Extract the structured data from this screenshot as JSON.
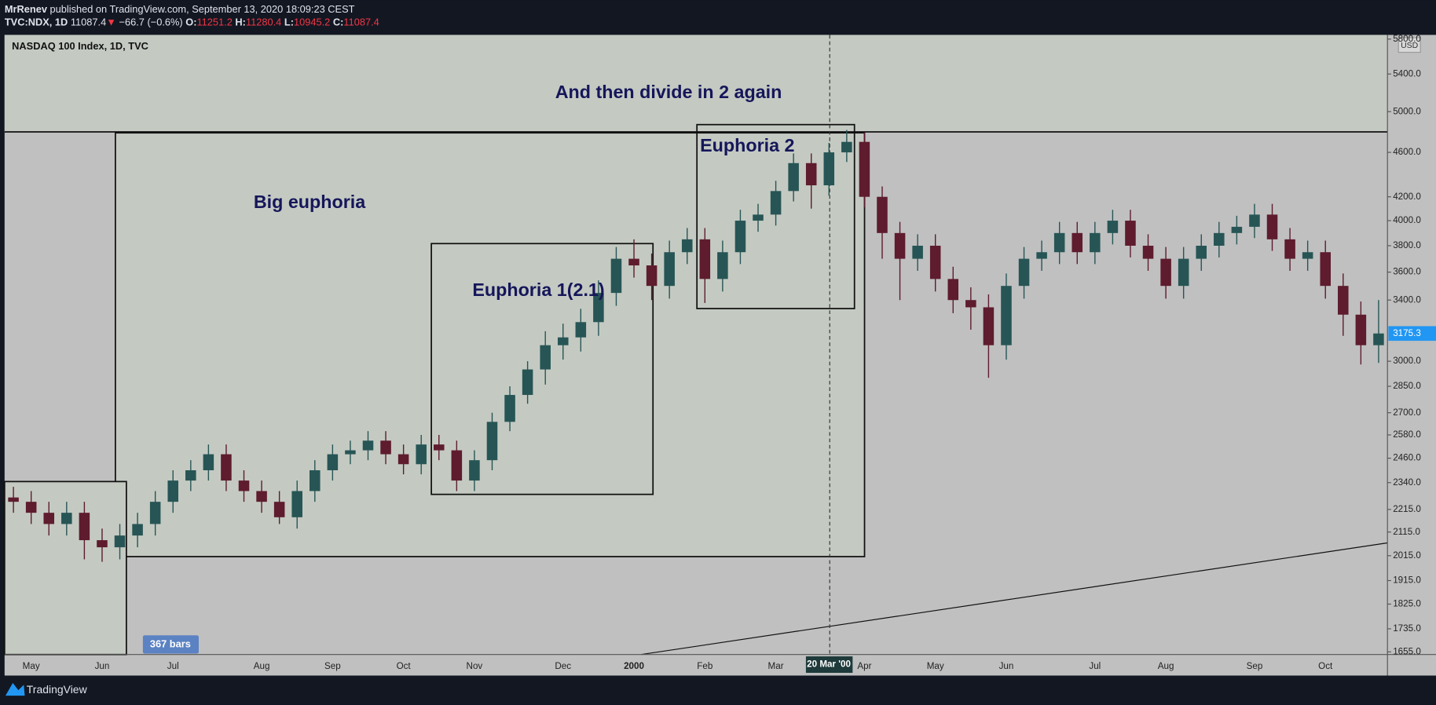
{
  "header": {
    "author": "MrRenev",
    "published": "published on TradingView.com, September 13, 2020 18:09:23 CEST",
    "symbol": "TVC:NDX, 1D",
    "last": "11087.4",
    "change_arrow": "▼",
    "change": "−66.7 (−0.6%)",
    "ohlc": [
      {
        "label": "O:",
        "value": "11251.2"
      },
      {
        "label": "H:",
        "value": "11280.4"
      },
      {
        "label": "L:",
        "value": "10945.2"
      },
      {
        "label": "C:",
        "value": "11087.4"
      }
    ]
  },
  "chart_data": {
    "type": "candlestick",
    "title": "NASDAQ 100 Index, 1D, TVC",
    "currency": "USD",
    "log_scale": true,
    "up_color": "#275555",
    "down_color": "#5e1c2e",
    "categories": [
      null,
      "May",
      null,
      null,
      null,
      "Jun",
      null,
      null,
      null,
      "Jul",
      null,
      null,
      null,
      null,
      "Aug",
      null,
      null,
      null,
      "Sep",
      null,
      null,
      null,
      "Oct",
      null,
      null,
      null,
      "Nov",
      null,
      null,
      null,
      null,
      "Dec",
      null,
      null,
      null,
      "2000",
      null,
      null,
      null,
      "Feb",
      null,
      null,
      null,
      "Mar",
      null,
      null,
      null,
      null,
      "Apr",
      null,
      null,
      null,
      "May",
      null,
      null,
      null,
      "Jun",
      null,
      null,
      null,
      null,
      "Jul",
      null,
      null,
      null,
      "Aug",
      null,
      null,
      null,
      null,
      "Sep",
      null,
      null,
      null,
      "Oct",
      null,
      null,
      null
    ],
    "open": [
      2270,
      2250,
      2200,
      2150,
      2200,
      2080,
      2050,
      2100,
      2150,
      2250,
      2350,
      2400,
      2480,
      2350,
      2300,
      2250,
      2180,
      2300,
      2400,
      2480,
      2500,
      2550,
      2480,
      2430,
      2530,
      2500,
      2350,
      2450,
      2650,
      2800,
      2950,
      3100,
      3150,
      3250,
      3450,
      3700,
      3650,
      3500,
      3750,
      3850,
      3550,
      3750,
      4000,
      4050,
      4250,
      4500,
      4300,
      4600,
      4700,
      4200,
      3900,
      3700,
      3800,
      3550,
      3400,
      3350,
      3100,
      3500,
      3700,
      3750,
      3900,
      3750,
      3900,
      4000,
      3800,
      3700,
      3500,
      3700,
      3800,
      3900,
      3950,
      4050,
      3850,
      3700,
      3750,
      3500,
      3300,
      3100
    ],
    "high": [
      2320,
      2300,
      2250,
      2250,
      2250,
      2130,
      2150,
      2200,
      2300,
      2400,
      2450,
      2530,
      2530,
      2400,
      2350,
      2300,
      2350,
      2450,
      2530,
      2550,
      2600,
      2600,
      2530,
      2580,
      2580,
      2550,
      2500,
      2700,
      2850,
      3000,
      3190,
      3240,
      3340,
      3540,
      3790,
      3850,
      3740,
      3840,
      3940,
      3940,
      3840,
      4090,
      4140,
      4340,
      4590,
      4590,
      4690,
      4816,
      4790,
      4290,
      3990,
      3890,
      3890,
      3640,
      3490,
      3440,
      3590,
      3790,
      3840,
      3990,
      3990,
      3990,
      4090,
      4090,
      3890,
      3790,
      3790,
      3890,
      3990,
      4040,
      4140,
      4140,
      3940,
      3840,
      3840,
      3590,
      3390,
      3400
    ],
    "low": [
      2200,
      2150,
      2100,
      2100,
      2000,
      1990,
      2000,
      2050,
      2100,
      2200,
      2300,
      2350,
      2300,
      2250,
      2200,
      2150,
      2130,
      2250,
      2350,
      2430,
      2450,
      2430,
      2380,
      2380,
      2450,
      2300,
      2300,
      2400,
      2600,
      2750,
      2860,
      3010,
      3060,
      3160,
      3360,
      3560,
      3400,
      3410,
      3660,
      3380,
      3460,
      3660,
      3910,
      3960,
      4160,
      4100,
      4210,
      4510,
      4110,
      3700,
      3400,
      3610,
      3460,
      3310,
      3200,
      2900,
      3010,
      3410,
      3610,
      3660,
      3660,
      3660,
      3810,
      3710,
      3610,
      3410,
      3410,
      3610,
      3710,
      3810,
      3860,
      3760,
      3610,
      3610,
      3410,
      3160,
      2980,
      2990
    ],
    "close": [
      2250,
      2200,
      2150,
      2200,
      2080,
      2050,
      2100,
      2150,
      2250,
      2350,
      2400,
      2480,
      2350,
      2300,
      2250,
      2180,
      2300,
      2400,
      2480,
      2500,
      2550,
      2480,
      2430,
      2530,
      2500,
      2350,
      2450,
      2650,
      2800,
      2950,
      3100,
      3150,
      3250,
      3450,
      3700,
      3650,
      3500,
      3750,
      3850,
      3550,
      3750,
      4000,
      4050,
      4250,
      4500,
      4300,
      4600,
      4700,
      4200,
      3900,
      3700,
      3800,
      3550,
      3400,
      3350,
      3100,
      3500,
      3700,
      3750,
      3900,
      3750,
      3900,
      4000,
      3800,
      3700,
      3500,
      3700,
      3800,
      3900,
      3950,
      4050,
      3850,
      3700,
      3750,
      3500,
      3300,
      3100,
      3175.3
    ],
    "ylim": [
      1646,
      5850
    ],
    "yticks": [
      {
        "value": 1655,
        "label": "1655.0"
      },
      {
        "value": 1735,
        "label": "1735.0"
      },
      {
        "value": 1825,
        "label": "1825.0"
      },
      {
        "value": 1915,
        "label": "1915.0"
      },
      {
        "value": 2015,
        "label": "2015.0"
      },
      {
        "value": 2115,
        "label": "2115.0"
      },
      {
        "value": 2215,
        "label": "2215.0"
      },
      {
        "value": 2340,
        "label": "2340.0"
      },
      {
        "value": 2460,
        "label": "2460.0"
      },
      {
        "value": 2580,
        "label": "2580.0"
      },
      {
        "value": 2700,
        "label": "2700.0"
      },
      {
        "value": 2850,
        "label": "2850.0"
      },
      {
        "value": 3000,
        "label": "3000.0"
      },
      {
        "value": 3400,
        "label": "3400.0"
      },
      {
        "value": 3600,
        "label": "3600.0"
      },
      {
        "value": 3800,
        "label": "3800.0"
      },
      {
        "value": 4000,
        "label": "4000.0"
      },
      {
        "value": 4200,
        "label": "4200.0"
      },
      {
        "value": 4600,
        "label": "4600.0"
      },
      {
        "value": 5000,
        "label": "5000.0"
      },
      {
        "value": 5400,
        "label": "5400.0"
      },
      {
        "value": 5800,
        "label": "5800.0"
      }
    ],
    "last_price": 3175.3,
    "crosshair_label": "20 Mar '00",
    "bars_label": "367 bars",
    "annotations": [
      "And then divide in 2 again",
      "Big euphoria",
      "Euphoria 1(2.1)",
      "Euphoria 2"
    ]
  },
  "footer": {
    "brand": "TradingView"
  }
}
